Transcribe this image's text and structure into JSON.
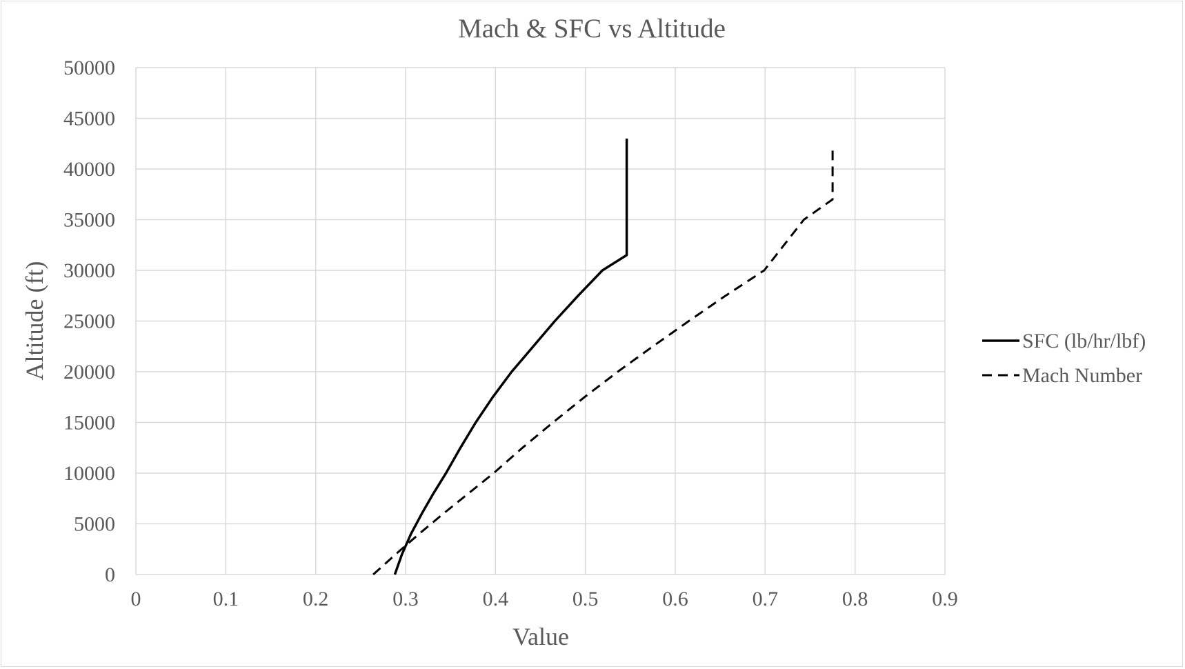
{
  "chart_data": {
    "type": "line",
    "title": "Mach & SFC vs Altitude",
    "xlabel": "Value",
    "ylabel": "Altitude (ft)",
    "xlim": [
      0,
      0.9
    ],
    "ylim": [
      0,
      50000
    ],
    "xticks": [
      "0",
      "0.1",
      "0.2",
      "0.3",
      "0.4",
      "0.5",
      "0.6",
      "0.7",
      "0.8",
      "0.9"
    ],
    "yticks": [
      "0",
      "5000",
      "10000",
      "15000",
      "20000",
      "25000",
      "30000",
      "35000",
      "40000",
      "45000",
      "50000"
    ],
    "grid": true,
    "legend_position": "right",
    "series": [
      {
        "name": "SFC (lb/hr/lbf)",
        "style": "solid",
        "color": "#000000",
        "points": [
          [
            0.288,
            0
          ],
          [
            0.296,
            2000
          ],
          [
            0.306,
            4000
          ],
          [
            0.318,
            6000
          ],
          [
            0.331,
            8000
          ],
          [
            0.345,
            10000
          ],
          [
            0.361,
            12500
          ],
          [
            0.378,
            15000
          ],
          [
            0.397,
            17500
          ],
          [
            0.418,
            20000
          ],
          [
            0.442,
            22500
          ],
          [
            0.466,
            25000
          ],
          [
            0.492,
            27500
          ],
          [
            0.519,
            30000
          ],
          [
            0.546,
            31500
          ],
          [
            0.546,
            43000
          ]
        ]
      },
      {
        "name": "Mach Number",
        "style": "dashed",
        "color": "#000000",
        "points": [
          [
            0.264,
            0
          ],
          [
            0.289,
            2000
          ],
          [
            0.315,
            4000
          ],
          [
            0.342,
            6000
          ],
          [
            0.37,
            8000
          ],
          [
            0.398,
            10000
          ],
          [
            0.43,
            12500
          ],
          [
            0.464,
            15000
          ],
          [
            0.499,
            17500
          ],
          [
            0.536,
            20000
          ],
          [
            0.575,
            22500
          ],
          [
            0.615,
            25000
          ],
          [
            0.656,
            27500
          ],
          [
            0.699,
            30000
          ],
          [
            0.743,
            35000
          ],
          [
            0.775,
            37000
          ],
          [
            0.775,
            42000
          ]
        ]
      }
    ]
  }
}
